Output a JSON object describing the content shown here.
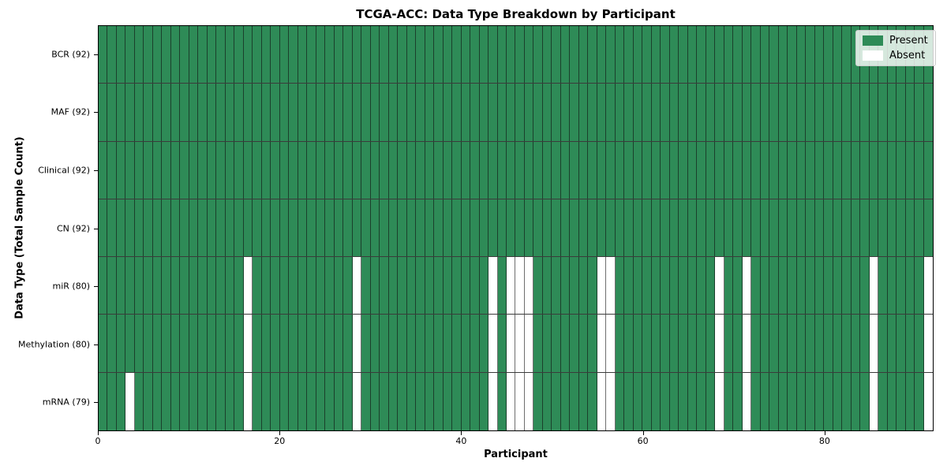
{
  "title": "TCGA-ACC: Data Type Breakdown by Participant",
  "axes": {
    "xlabel": "Participant",
    "ylabel": "Data Type (Total Sample Count)"
  },
  "legend": {
    "present_label": "Present",
    "absent_label": "Absent"
  },
  "colors": {
    "present": "#2e8b57",
    "absent": "#ffffff",
    "cell_edge": "#1a1a1a"
  },
  "chart_data": {
    "type": "heatmap",
    "title": "TCGA-ACC: Data Type Breakdown by Participant",
    "xlabel": "Participant",
    "ylabel": "Data Type (Total Sample Count)",
    "n_participants": 92,
    "x_range": [
      0,
      92
    ],
    "x_ticks": [
      0,
      20,
      40,
      60,
      80
    ],
    "grid": true,
    "legend_entries": [
      "Present",
      "Absent"
    ],
    "legend_position": "upper right",
    "rows": [
      {
        "label": "BCR (92)",
        "data_type": "BCR",
        "present_count": 92,
        "absent_participants": []
      },
      {
        "label": "MAF (92)",
        "data_type": "MAF",
        "present_count": 92,
        "absent_participants": []
      },
      {
        "label": "Clinical (92)",
        "data_type": "Clinical",
        "present_count": 92,
        "absent_participants": []
      },
      {
        "label": "CN (92)",
        "data_type": "CN",
        "present_count": 92,
        "absent_participants": []
      },
      {
        "label": "miR (80)",
        "data_type": "miR",
        "present_count": 80,
        "absent_participants": [
          16,
          28,
          43,
          45,
          46,
          47,
          55,
          56,
          68,
          71,
          85,
          91
        ]
      },
      {
        "label": "Methylation (80)",
        "data_type": "Methylation",
        "present_count": 80,
        "absent_participants": [
          16,
          28,
          43,
          45,
          46,
          47,
          55,
          56,
          68,
          71,
          85,
          91
        ]
      },
      {
        "label": "mRNA (79)",
        "data_type": "mRNA",
        "present_count": 79,
        "absent_participants": [
          3,
          16,
          28,
          43,
          45,
          46,
          47,
          55,
          56,
          68,
          71,
          85,
          91
        ]
      }
    ]
  }
}
